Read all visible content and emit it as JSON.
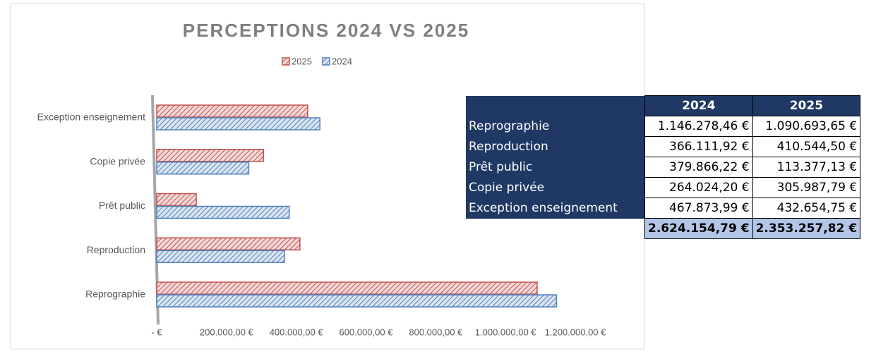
{
  "chart_data": {
    "type": "bar",
    "orientation": "horizontal",
    "title": "PERCEPTIONS 2024 VS 2025",
    "categories": [
      "Reprographie",
      "Reproduction",
      "Prêt public",
      "Copie privée",
      "Exception enseignement"
    ],
    "series": [
      {
        "name": "2025",
        "color": "#c0504d",
        "values": [
          1090693.65,
          410544.5,
          113377.13,
          305987.79,
          432654.75
        ]
      },
      {
        "name": "2024",
        "color": "#4f81bd",
        "values": [
          1146278.46,
          366111.92,
          379866.22,
          264024.2,
          467873.99
        ]
      }
    ],
    "xlim": [
      0,
      1200000
    ],
    "xticks": [
      {
        "value": 0,
        "label": "-   €"
      },
      {
        "value": 200000,
        "label": "200.000,00 €"
      },
      {
        "value": 400000,
        "label": "400.000,00 €"
      },
      {
        "value": 600000,
        "label": "600.000,00 €"
      },
      {
        "value": 800000,
        "label": "800.000,00 €"
      },
      {
        "value": 1000000,
        "label": "1.000.000,00 €"
      },
      {
        "value": 1200000,
        "label": "1.200.000,00 €"
      }
    ],
    "legend": "top",
    "grid": false
  },
  "table": {
    "headers": [
      "2024",
      "2025"
    ],
    "rows": [
      [
        "Reprographie",
        "1.146.278,46 €",
        "1.090.693,65 €"
      ],
      [
        "Reproduction",
        "366.111,92 €",
        "410.544,50 €"
      ],
      [
        "Prêt public",
        "379.866,22 €",
        "113.377,13 €"
      ],
      [
        "Copie privée",
        "264.024,20 €",
        "305.987,79 €"
      ],
      [
        "Exception enseignement",
        "467.873,99 €",
        "432.654,75 €"
      ]
    ],
    "total": [
      "2.624.154,79 €",
      "2.353.257,82 €"
    ]
  }
}
